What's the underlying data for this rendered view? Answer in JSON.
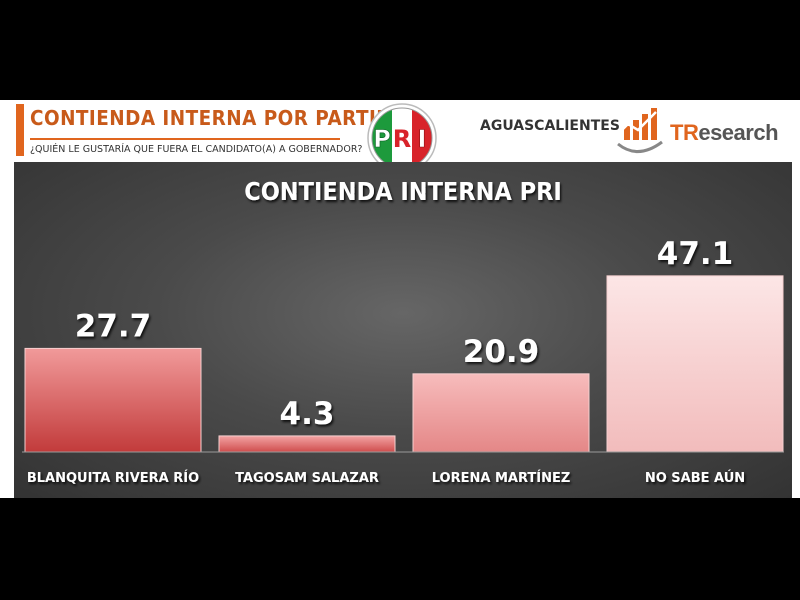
{
  "header": {
    "title": "CONTIENDA INTERNA POR PARTIDO",
    "subtitle": "¿QUIÉN LE GUSTARÍA QUE FUERA EL CANDIDATO(A) A GOBERNADOR?",
    "region": "AGUASCALIENTES",
    "brand_t": "TR",
    "brand_rest": "esearch",
    "pri_letters": [
      "P",
      "R",
      "I"
    ]
  },
  "colors": {
    "accent": "#e0651e",
    "pri_green": "#1d9a3c",
    "pri_red": "#d8232a",
    "bar_dark": "#c23b3b",
    "bar_light": "#f8d2d2"
  },
  "chart_data": {
    "type": "bar",
    "title": "CONTIENDA INTERNA PRI",
    "categories": [
      "BLANQUITA RIVERA RÍO",
      "TAGOSAM SALAZAR",
      "LORENA MARTÍNEZ",
      "NO SABE AÚN"
    ],
    "values": [
      27.7,
      4.3,
      20.9,
      47.1
    ],
    "value_labels": [
      "27.7",
      "4.3",
      "20.9",
      "47.1"
    ],
    "ylim": [
      0,
      50
    ],
    "grid": false,
    "legend": "none"
  }
}
